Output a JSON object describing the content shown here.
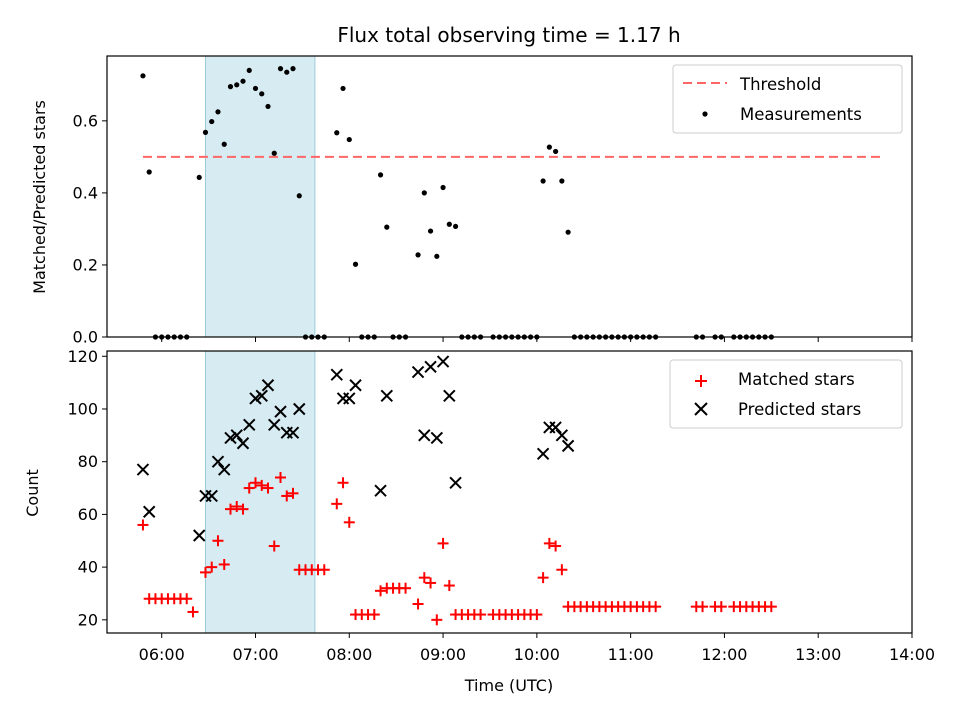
{
  "chart_data": [
    {
      "type": "scatter",
      "title": "Flux total observing time = 1.17 h",
      "xlabel": "",
      "ylabel": "Matched/Predicted stars",
      "xlim": [
        "05:25",
        "14:00"
      ],
      "ylim": [
        0,
        0.78
      ],
      "yticks": [
        0.0,
        0.2,
        0.4,
        0.6
      ],
      "ytick_labels": [
        "0.0",
        "0.2",
        "0.4",
        "0.6"
      ],
      "highlight_span": [
        "06:28",
        "07:38"
      ],
      "legend": {
        "placement": "top-right",
        "entries": [
          "Threshold",
          "Measurements"
        ]
      },
      "threshold": {
        "name": "Threshold",
        "value": 0.5,
        "x_range": [
          "05:48",
          "13:42"
        ],
        "color": "#ff6666",
        "style": "dashed"
      },
      "series": [
        {
          "name": "Measurements",
          "color": "#000000",
          "points": [
            [
              "05:48",
              0.725
            ],
            [
              "05:52",
              0.458
            ],
            [
              "05:56",
              0
            ],
            [
              "06:00",
              0
            ],
            [
              "06:04",
              0
            ],
            [
              "06:08",
              0
            ],
            [
              "06:12",
              0
            ],
            [
              "06:16",
              0
            ],
            [
              "06:24",
              0.443
            ],
            [
              "06:28",
              0.568
            ],
            [
              "06:32",
              0.598
            ],
            [
              "06:36",
              0.625
            ],
            [
              "06:40",
              0.535
            ],
            [
              "06:44",
              0.695
            ],
            [
              "06:48",
              0.7
            ],
            [
              "06:52",
              0.71
            ],
            [
              "06:56",
              0.74
            ],
            [
              "07:00",
              0.69
            ],
            [
              "07:04",
              0.675
            ],
            [
              "07:08",
              0.64
            ],
            [
              "07:12",
              0.51
            ],
            [
              "07:16",
              0.745
            ],
            [
              "07:20",
              0.735
            ],
            [
              "07:24",
              0.745
            ],
            [
              "07:28",
              0.392
            ],
            [
              "07:32",
              0
            ],
            [
              "07:36",
              0
            ],
            [
              "07:40",
              0
            ],
            [
              "07:44",
              0
            ],
            [
              "07:52",
              0.567
            ],
            [
              "07:56",
              0.69
            ],
            [
              "08:00",
              0.548
            ],
            [
              "08:04",
              0.202
            ],
            [
              "08:08",
              0
            ],
            [
              "08:12",
              0
            ],
            [
              "08:16",
              0
            ],
            [
              "08:20",
              0.45
            ],
            [
              "08:24",
              0.305
            ],
            [
              "08:28",
              0
            ],
            [
              "08:32",
              0
            ],
            [
              "08:36",
              0
            ],
            [
              "08:44",
              0.228
            ],
            [
              "08:48",
              0.4
            ],
            [
              "08:52",
              0.294
            ],
            [
              "08:56",
              0.224
            ],
            [
              "09:00",
              0.415
            ],
            [
              "09:04",
              0.313
            ],
            [
              "09:08",
              0.307
            ],
            [
              "09:12",
              0
            ],
            [
              "09:16",
              0
            ],
            [
              "09:20",
              0
            ],
            [
              "09:24",
              0
            ],
            [
              "09:32",
              0
            ],
            [
              "09:36",
              0
            ],
            [
              "09:40",
              0
            ],
            [
              "09:44",
              0
            ],
            [
              "09:48",
              0
            ],
            [
              "09:52",
              0
            ],
            [
              "09:56",
              0
            ],
            [
              "10:00",
              0
            ],
            [
              "10:04",
              0.433
            ],
            [
              "10:08",
              0.527
            ],
            [
              "10:12",
              0.515
            ],
            [
              "10:16",
              0.433
            ],
            [
              "10:20",
              0.291
            ],
            [
              "10:24",
              0
            ],
            [
              "10:28",
              0
            ],
            [
              "10:32",
              0
            ],
            [
              "10:36",
              0
            ],
            [
              "10:40",
              0
            ],
            [
              "10:44",
              0
            ],
            [
              "10:48",
              0
            ],
            [
              "10:52",
              0
            ],
            [
              "10:56",
              0
            ],
            [
              "11:00",
              0
            ],
            [
              "11:04",
              0
            ],
            [
              "11:08",
              0
            ],
            [
              "11:12",
              0
            ],
            [
              "11:16",
              0
            ],
            [
              "11:42",
              0
            ],
            [
              "11:46",
              0
            ],
            [
              "11:54",
              0
            ],
            [
              "11:58",
              0
            ],
            [
              "12:06",
              0
            ],
            [
              "12:10",
              0
            ],
            [
              "12:14",
              0
            ],
            [
              "12:18",
              0
            ],
            [
              "12:22",
              0
            ],
            [
              "12:26",
              0
            ],
            [
              "12:30",
              0
            ]
          ]
        }
      ]
    },
    {
      "type": "scatter",
      "title": "",
      "xlabel": "Time (UTC)",
      "ylabel": "Count",
      "xlim": [
        "05:25",
        "14:00"
      ],
      "ylim": [
        15,
        122
      ],
      "xticks": [
        "06:00",
        "07:00",
        "08:00",
        "09:00",
        "10:00",
        "11:00",
        "12:00",
        "13:00",
        "14:00"
      ],
      "yticks": [
        20,
        40,
        60,
        80,
        100,
        120
      ],
      "ytick_labels": [
        "20",
        "40",
        "60",
        "80",
        "100",
        "120"
      ],
      "highlight_span": [
        "06:28",
        "07:38"
      ],
      "legend": {
        "placement": "top-right",
        "entries": [
          "Matched stars",
          "Predicted stars"
        ]
      },
      "series": [
        {
          "name": "Matched stars",
          "marker": "plus",
          "color": "#ff0000",
          "points": [
            [
              "05:48",
              56
            ],
            [
              "05:52",
              28
            ],
            [
              "05:56",
              28
            ],
            [
              "06:00",
              28
            ],
            [
              "06:04",
              28
            ],
            [
              "06:08",
              28
            ],
            [
              "06:12",
              28
            ],
            [
              "06:16",
              28
            ],
            [
              "06:20",
              23
            ],
            [
              "06:28",
              38
            ],
            [
              "06:32",
              40
            ],
            [
              "06:36",
              50
            ],
            [
              "06:40",
              41
            ],
            [
              "06:44",
              62
            ],
            [
              "06:48",
              63
            ],
            [
              "06:52",
              62
            ],
            [
              "06:56",
              70
            ],
            [
              "07:00",
              72
            ],
            [
              "07:04",
              71
            ],
            [
              "07:08",
              70
            ],
            [
              "07:12",
              48
            ],
            [
              "07:16",
              74
            ],
            [
              "07:20",
              67
            ],
            [
              "07:24",
              68
            ],
            [
              "07:28",
              39
            ],
            [
              "07:32",
              39
            ],
            [
              "07:36",
              39
            ],
            [
              "07:40",
              39
            ],
            [
              "07:44",
              39
            ],
            [
              "07:52",
              64
            ],
            [
              "07:56",
              72
            ],
            [
              "08:00",
              57
            ],
            [
              "08:04",
              22
            ],
            [
              "08:08",
              22
            ],
            [
              "08:12",
              22
            ],
            [
              "08:16",
              22
            ],
            [
              "08:20",
              31
            ],
            [
              "08:24",
              32
            ],
            [
              "08:28",
              32
            ],
            [
              "08:32",
              32
            ],
            [
              "08:36",
              32
            ],
            [
              "08:44",
              26
            ],
            [
              "08:48",
              36
            ],
            [
              "08:52",
              34
            ],
            [
              "08:56",
              20
            ],
            [
              "09:00",
              49
            ],
            [
              "09:04",
              33
            ],
            [
              "09:08",
              22
            ],
            [
              "09:12",
              22
            ],
            [
              "09:16",
              22
            ],
            [
              "09:20",
              22
            ],
            [
              "09:24",
              22
            ],
            [
              "09:32",
              22
            ],
            [
              "09:36",
              22
            ],
            [
              "09:40",
              22
            ],
            [
              "09:44",
              22
            ],
            [
              "09:48",
              22
            ],
            [
              "09:52",
              22
            ],
            [
              "09:56",
              22
            ],
            [
              "10:00",
              22
            ],
            [
              "10:04",
              36
            ],
            [
              "10:08",
              49
            ],
            [
              "10:12",
              48
            ],
            [
              "10:16",
              39
            ],
            [
              "10:20",
              25
            ],
            [
              "10:24",
              25
            ],
            [
              "10:28",
              25
            ],
            [
              "10:32",
              25
            ],
            [
              "10:36",
              25
            ],
            [
              "10:40",
              25
            ],
            [
              "10:44",
              25
            ],
            [
              "10:48",
              25
            ],
            [
              "10:52",
              25
            ],
            [
              "10:56",
              25
            ],
            [
              "11:00",
              25
            ],
            [
              "11:04",
              25
            ],
            [
              "11:08",
              25
            ],
            [
              "11:12",
              25
            ],
            [
              "11:16",
              25
            ],
            [
              "11:42",
              25
            ],
            [
              "11:46",
              25
            ],
            [
              "11:54",
              25
            ],
            [
              "11:58",
              25
            ],
            [
              "12:06",
              25
            ],
            [
              "12:10",
              25
            ],
            [
              "12:14",
              25
            ],
            [
              "12:18",
              25
            ],
            [
              "12:22",
              25
            ],
            [
              "12:26",
              25
            ],
            [
              "12:30",
              25
            ]
          ]
        },
        {
          "name": "Predicted stars",
          "marker": "x",
          "color": "#000000",
          "points": [
            [
              "05:48",
              77
            ],
            [
              "05:52",
              61
            ],
            [
              "06:24",
              52
            ],
            [
              "06:28",
              67
            ],
            [
              "06:32",
              67
            ],
            [
              "06:36",
              80
            ],
            [
              "06:40",
              77
            ],
            [
              "06:44",
              89
            ],
            [
              "06:48",
              90
            ],
            [
              "06:52",
              87
            ],
            [
              "06:56",
              94
            ],
            [
              "07:00",
              104
            ],
            [
              "07:04",
              105
            ],
            [
              "07:08",
              109
            ],
            [
              "07:12",
              94
            ],
            [
              "07:16",
              99
            ],
            [
              "07:20",
              91
            ],
            [
              "07:24",
              91
            ],
            [
              "07:28",
              100
            ],
            [
              "07:52",
              113
            ],
            [
              "07:56",
              104
            ],
            [
              "08:00",
              104
            ],
            [
              "08:04",
              109
            ],
            [
              "08:20",
              69
            ],
            [
              "08:24",
              105
            ],
            [
              "08:44",
              114
            ],
            [
              "08:48",
              90
            ],
            [
              "08:52",
              116
            ],
            [
              "08:56",
              89
            ],
            [
              "09:00",
              118
            ],
            [
              "09:04",
              105
            ],
            [
              "09:08",
              72
            ],
            [
              "10:04",
              83
            ],
            [
              "10:08",
              93
            ],
            [
              "10:12",
              93
            ],
            [
              "10:16",
              90
            ],
            [
              "10:20",
              86
            ]
          ]
        }
      ]
    }
  ]
}
